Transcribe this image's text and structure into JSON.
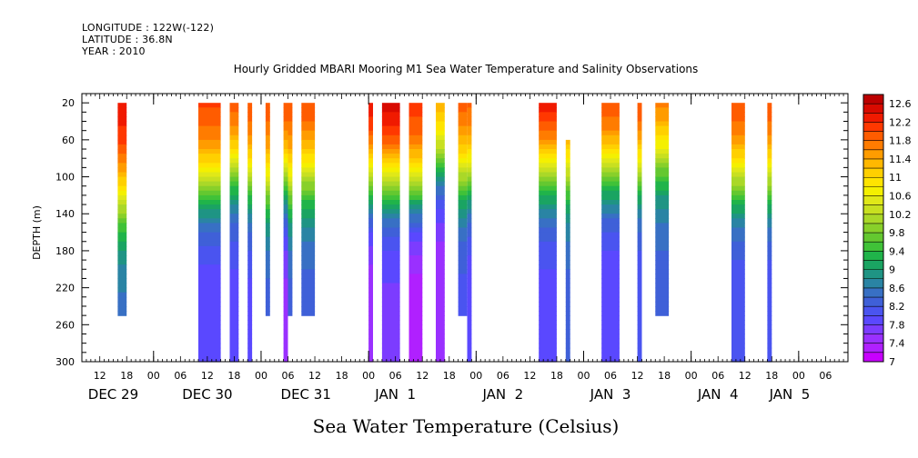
{
  "header": {
    "longitude": "LONGITUDE : 122W(-122)",
    "latitude": "LATITUDE : 36.8N",
    "year": "YEAR : 2010"
  },
  "chart_data": {
    "type": "heatmap",
    "title": "Hourly Gridded MBARI Mooring M1 Sea Water Temperature and Salinity Observations",
    "xlabel": "Sea Water Temperature (Celsius)",
    "ylabel": "DEPTH (m)",
    "x_units": "hours since Dec 29 2010 00:00",
    "xlim": [
      8,
      134
    ],
    "ylim": [
      10,
      300
    ],
    "y_ticks": [
      20,
      60,
      100,
      140,
      180,
      220,
      260,
      300
    ],
    "x_hour_ticks": [
      {
        "h": 12,
        "label": "12"
      },
      {
        "h": 18,
        "label": "18"
      },
      {
        "h": 24,
        "label": "00"
      },
      {
        "h": 30,
        "label": "06"
      },
      {
        "h": 36,
        "label": "12"
      },
      {
        "h": 42,
        "label": "18"
      },
      {
        "h": 48,
        "label": "00"
      },
      {
        "h": 54,
        "label": "06"
      },
      {
        "h": 60,
        "label": "12"
      },
      {
        "h": 66,
        "label": "18"
      },
      {
        "h": 72,
        "label": "00"
      },
      {
        "h": 78,
        "label": "06"
      },
      {
        "h": 84,
        "label": "12"
      },
      {
        "h": 90,
        "label": "18"
      },
      {
        "h": 96,
        "label": "00"
      },
      {
        "h": 102,
        "label": "06"
      },
      {
        "h": 108,
        "label": "12"
      },
      {
        "h": 114,
        "label": "18"
      },
      {
        "h": 120,
        "label": "00"
      },
      {
        "h": 126,
        "label": "06"
      },
      {
        "h": 132,
        "label": "12"
      },
      {
        "h": 138,
        "label": "18"
      },
      {
        "h": 144,
        "label": "00"
      },
      {
        "h": 150,
        "label": "06"
      },
      {
        "h": 156,
        "label": "12"
      },
      {
        "h": 162,
        "label": "18"
      },
      {
        "h": 168,
        "label": "00"
      },
      {
        "h": 174,
        "label": "06"
      }
    ],
    "x_date_labels": [
      {
        "h": 15,
        "label": "DEC 29"
      },
      {
        "h": 36,
        "label": "DEC 30"
      },
      {
        "h": 58,
        "label": "DEC 31"
      },
      {
        "h": 78,
        "label": "JAN  1"
      },
      {
        "h": 102,
        "label": "JAN  2"
      },
      {
        "h": 126,
        "label": "JAN  3"
      },
      {
        "h": 150,
        "label": "JAN  4"
      },
      {
        "h": 166,
        "label": "JAN  5"
      }
    ],
    "colorbar": {
      "min": 7,
      "max": 12.8,
      "step": 0.2,
      "labels": [
        "12.6",
        "12.2",
        "11.8",
        "11.4",
        "11",
        "10.6",
        "10.2",
        "9.8",
        "9.4",
        "9",
        "8.6",
        "8.2",
        "7.8",
        "7.4",
        "7"
      ]
    },
    "colors": {
      "7.0": "#c800ff",
      "7.2": "#b020ff",
      "7.4": "#9a30ff",
      "7.6": "#7c3cff",
      "7.8": "#5a48ff",
      "8.0": "#4a54f0",
      "8.2": "#3f60d8",
      "8.4": "#3870c4",
      "8.6": "#2a84a4",
      "8.8": "#1f9484",
      "9.0": "#1aa462",
      "9.2": "#20b44a",
      "9.4": "#40c238",
      "9.6": "#64c830",
      "9.8": "#88d02a",
      "10.0": "#aad828",
      "10.2": "#c8e020",
      "10.4": "#e0e818",
      "10.6": "#f4f000",
      "10.8": "#ffe400",
      "11.0": "#ffd000",
      "11.2": "#ffb800",
      "11.4": "#ff9c00",
      "11.6": "#ff7c00",
      "11.8": "#ff5c00",
      "12.0": "#ff3800",
      "12.2": "#f01a00",
      "12.4": "#d80a00",
      "12.6": "#bc0000",
      "12.8": "#9c0000"
    },
    "columns": [
      {
        "h0": 16,
        "h1": 18,
        "top": 20,
        "bottom": 250,
        "surf": 12.3,
        "therm": 125,
        "deep": 8.4
      },
      {
        "h0": 34,
        "h1": 39,
        "top": 20,
        "bottom": 300,
        "surf": 12.1,
        "therm": 110,
        "deep": 7.7
      },
      {
        "h0": 41,
        "h1": 43,
        "top": 20,
        "bottom": 300,
        "surf": 12.1,
        "therm": 95,
        "deep": 7.8
      },
      {
        "h0": 45,
        "h1": 46,
        "top": 20,
        "bottom": 300,
        "surf": 12.1,
        "therm": 105,
        "deep": 7.8
      },
      {
        "h0": 49,
        "h1": 50,
        "top": 20,
        "bottom": 250,
        "surf": 12.0,
        "therm": 110,
        "deep": 8.2
      },
      {
        "h0": 53,
        "h1": 54,
        "top": 20,
        "bottom": 300,
        "surf": 12.1,
        "therm": 105,
        "deep": 7.4
      },
      {
        "h0": 54,
        "h1": 55,
        "top": 20,
        "bottom": 250,
        "surf": 12.0,
        "therm": 110,
        "deep": 8.2
      },
      {
        "h0": 57,
        "h1": 60,
        "top": 20,
        "bottom": 250,
        "surf": 12.1,
        "therm": 100,
        "deep": 8.2
      },
      {
        "h0": 72,
        "h1": 73,
        "top": 20,
        "bottom": 300,
        "surf": 12.5,
        "therm": 105,
        "deep": 7.3
      },
      {
        "h0": 75,
        "h1": 79,
        "top": 20,
        "bottom": 300,
        "surf": 12.6,
        "therm": 105,
        "deep": 7.6
      },
      {
        "h0": 81,
        "h1": 84,
        "top": 20,
        "bottom": 300,
        "surf": 12.2,
        "therm": 115,
        "deep": 7.1
      },
      {
        "h0": 87,
        "h1": 89,
        "top": 20,
        "bottom": 300,
        "surf": 11.6,
        "therm": 85,
        "deep": 7.3
      },
      {
        "h0": 92,
        "h1": 94,
        "top": 20,
        "bottom": 250,
        "surf": 12.0,
        "therm": 100,
        "deep": 8.0
      },
      {
        "h0": 94,
        "h1": 95,
        "top": 20,
        "bottom": 300,
        "surf": 12.0,
        "therm": 100,
        "deep": 7.7
      },
      {
        "h0": 110,
        "h1": 114,
        "top": 20,
        "bottom": 300,
        "surf": 12.5,
        "therm": 95,
        "deep": 7.8
      },
      {
        "h0": 116,
        "h1": 117,
        "top": 60,
        "bottom": 300,
        "surf": 11.9,
        "therm": 100,
        "deep": 8.2
      },
      {
        "h0": 124,
        "h1": 128,
        "top": 20,
        "bottom": 300,
        "surf": 12.2,
        "therm": 95,
        "deep": 7.7
      },
      {
        "h0": 132,
        "h1": 133,
        "top": 20,
        "bottom": 300,
        "surf": 12.2,
        "therm": 95,
        "deep": 7.9
      },
      {
        "h0": 136,
        "h1": 139,
        "top": 20,
        "bottom": 250,
        "surf": 12.0,
        "therm": 80,
        "deep": 8.2
      },
      {
        "h0": 153,
        "h1": 156,
        "top": 20,
        "bottom": 300,
        "surf": 12.1,
        "therm": 105,
        "deep": 7.9
      },
      {
        "h0": 161,
        "h1": 162,
        "top": 20,
        "bottom": 300,
        "surf": 12.1,
        "therm": 105,
        "deep": 7.9
      }
    ]
  }
}
